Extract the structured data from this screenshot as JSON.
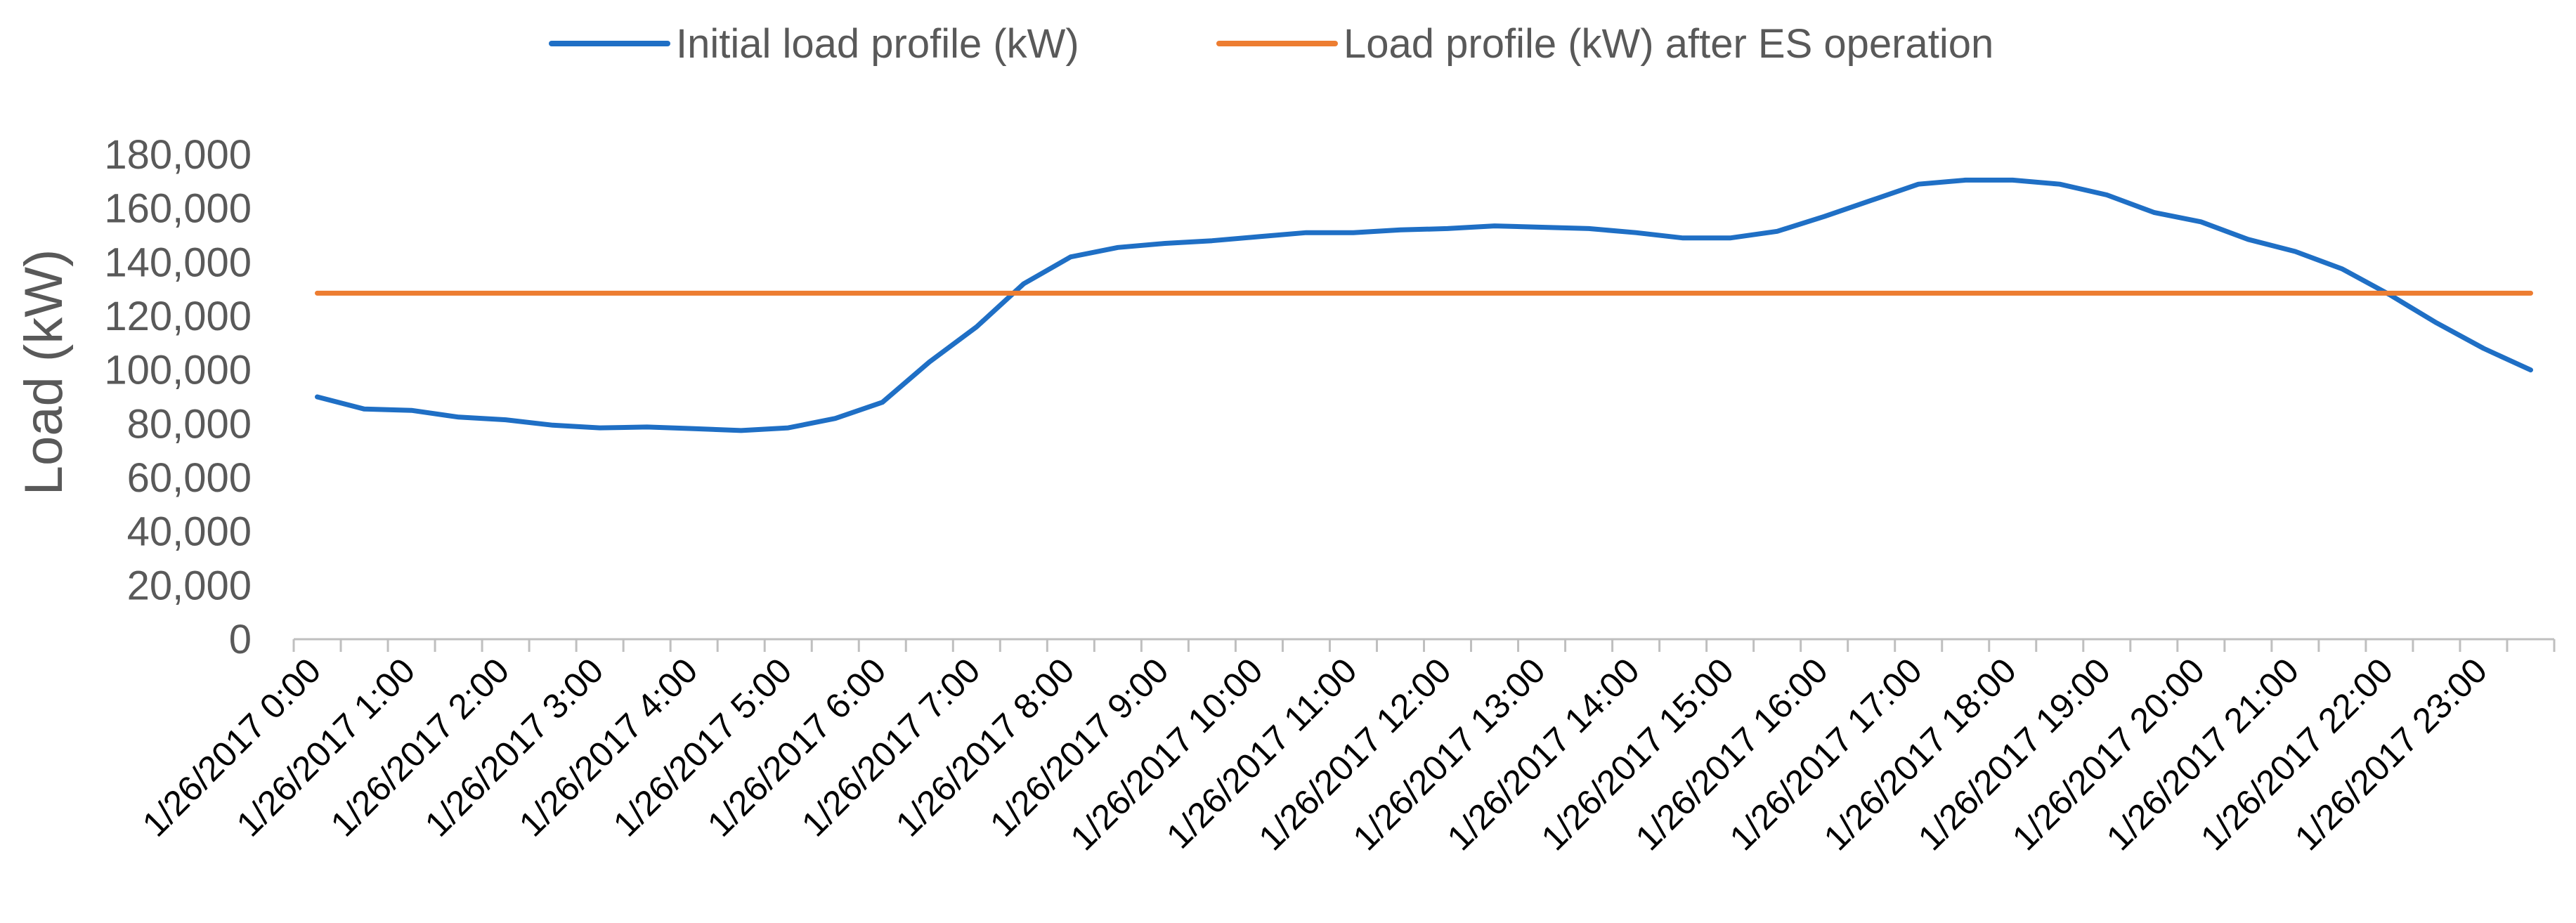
{
  "chart_data": {
    "type": "line",
    "title": "",
    "xlabel": "",
    "ylabel": "Load (kW)",
    "ylim": [
      0,
      180000
    ],
    "yticks": [
      0,
      20000,
      40000,
      60000,
      80000,
      100000,
      120000,
      140000,
      160000,
      180000
    ],
    "ytick_labels": [
      "0",
      "20,000",
      "40,000",
      "60,000",
      "80,000",
      "100,000",
      "120,000",
      "140,000",
      "160,000",
      "180,000"
    ],
    "x_tick_labels": [
      "1/26/2017 0:00",
      "1/26/2017 1:00",
      "1/26/2017 2:00",
      "1/26/2017 3:00",
      "1/26/2017 4:00",
      "1/26/2017 5:00",
      "1/26/2017 6:00",
      "1/26/2017 7:00",
      "1/26/2017 8:00",
      "1/26/2017 9:00",
      "1/26/2017 10:00",
      "1/26/2017 11:00",
      "1/26/2017 12:00",
      "1/26/2017 13:00",
      "1/26/2017 14:00",
      "1/26/2017 15:00",
      "1/26/2017 16:00",
      "1/26/2017 17:00",
      "1/26/2017 18:00",
      "1/26/2017 19:00",
      "1/26/2017 20:00",
      "1/26/2017 21:00",
      "1/26/2017 22:00",
      "1/26/2017 23:00"
    ],
    "grid": false,
    "legend_position": "top",
    "series": [
      {
        "name": "Initial load profile (kW)",
        "color": "#1F6FC5",
        "values": [
          90000,
          85500,
          85000,
          82500,
          81500,
          79500,
          78500,
          78800,
          78200,
          77500,
          78500,
          82000,
          88000,
          103000,
          116000,
          132000,
          142000,
          145500,
          147000,
          148000,
          149500,
          151000,
          151000,
          152000,
          152500,
          153500,
          153000,
          152500,
          151000,
          149000,
          149000,
          151500,
          157000,
          163000,
          169000,
          170500,
          170500,
          169000,
          165000,
          158500,
          155000,
          148500,
          144000,
          137500,
          128000,
          117500,
          108000,
          100000
        ]
      },
      {
        "name": "Load profile (kW) after ES operation",
        "color": "#ED7D31",
        "values": [
          128500,
          128500,
          128500,
          128500,
          128500,
          128500,
          128500,
          128500,
          128500,
          128500,
          128500,
          128500,
          128500,
          128500,
          128500,
          128500,
          128500,
          128500,
          128500,
          128500,
          128500,
          128500,
          128500,
          128500,
          128500,
          128500,
          128500,
          128500,
          128500,
          128500,
          128500,
          128500,
          128500,
          128500,
          128500,
          128500,
          128500,
          128500,
          128500,
          128500,
          128500,
          128500,
          128500,
          128500,
          128500,
          128500,
          128500,
          128500
        ]
      }
    ]
  }
}
